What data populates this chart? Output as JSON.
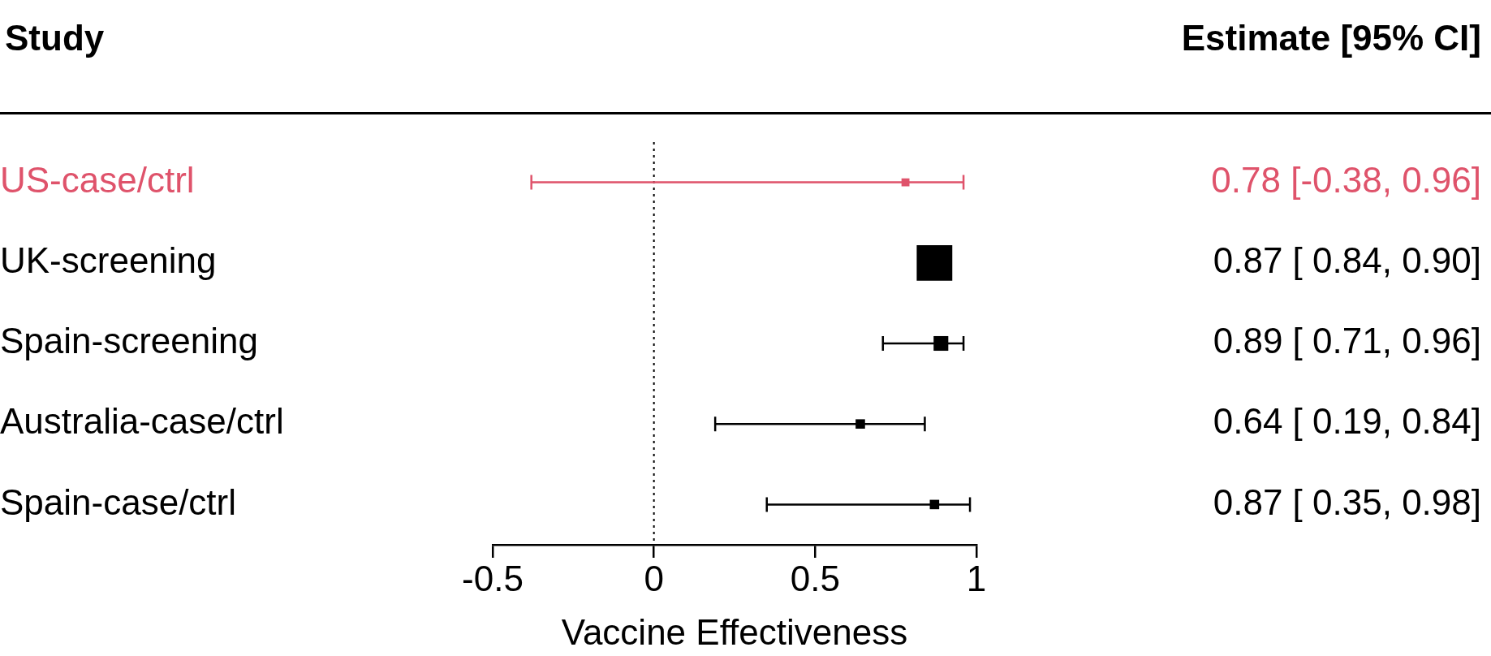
{
  "chart_data": {
    "type": "bubble",
    "orientation": "horizontal",
    "marker": "square",
    "categories": [
      "US-case/ctrl",
      "UK-screening",
      "Spain-screening",
      "Australia-case/ctrl",
      "Spain-case/ctrl"
    ],
    "values": [
      0.78,
      0.87,
      0.89,
      0.64,
      0.87
    ],
    "errors": [
      [
        -0.38,
        0.96
      ],
      null,
      [
        0.71,
        0.96
      ],
      [
        0.19,
        0.84
      ],
      [
        0.35,
        0.98
      ]
    ],
    "sizes": [
      0.05,
      1,
      0.17,
      0.07,
      0.07
    ],
    "colors": [
      "#df536b",
      "#000000",
      "#000000",
      "#000000",
      "#000000"
    ],
    "value_labels": [
      "0.78 [-0.38, 0.96]",
      "0.87 [ 0.84, 0.90]",
      "0.89 [ 0.71, 0.96]",
      "0.64 [ 0.19, 0.84]",
      "0.87 [ 0.35, 0.98]"
    ],
    "xlabel": "Vaccine Effectiveness",
    "xlim": [
      -0.5,
      1
    ],
    "xticks": [
      -0.5,
      0,
      0.5,
      1
    ],
    "ref_lines": [
      {
        "axis": "x",
        "value": 0,
        "line_style": "dotted",
        "color": "#000000"
      }
    ],
    "annotations": [
      "Study",
      "Estimate [95% CI]"
    ],
    "grid": false,
    "legend": false
  }
}
